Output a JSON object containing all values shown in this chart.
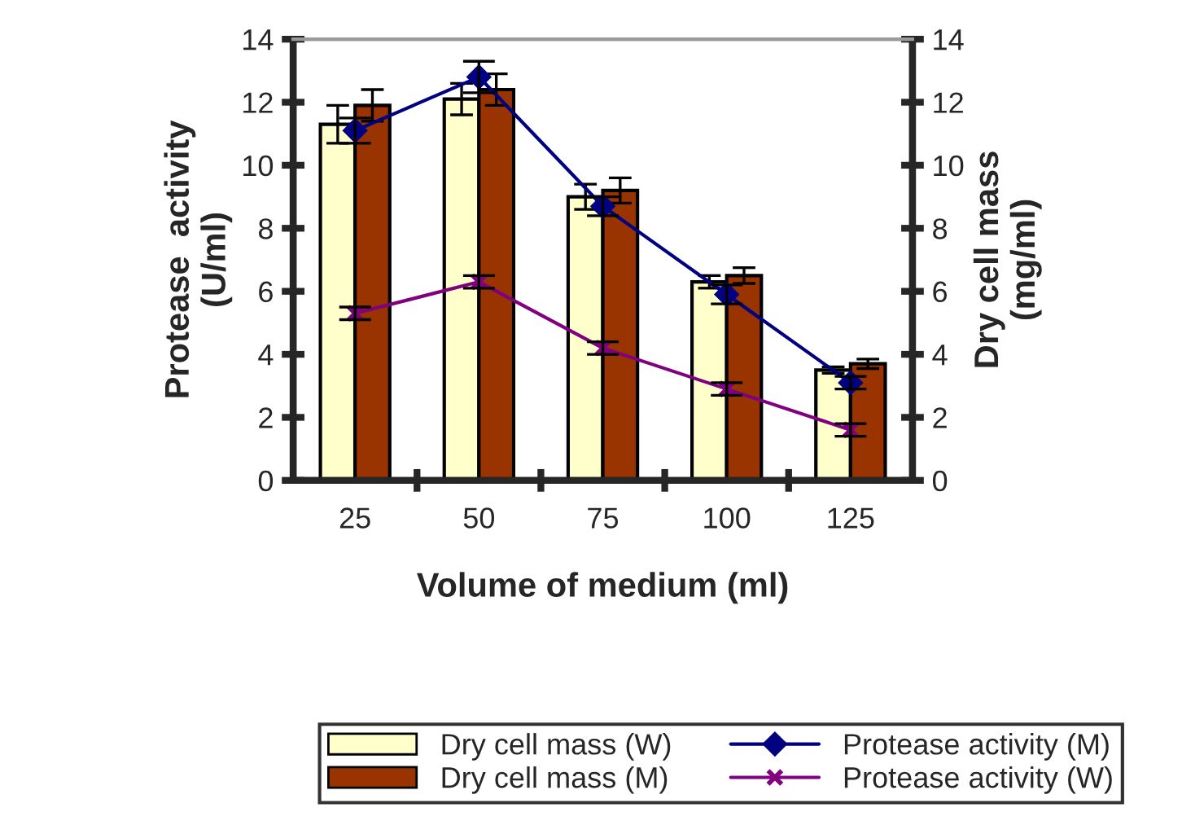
{
  "chart_data": {
    "type": "bar",
    "xlabel": "Volume of medium (ml)",
    "ylabel": "Protease  activity\n(U/ml)",
    "y2label": "Dry cell mass\n(mg/ml)",
    "categories": [
      "25",
      "50",
      "75",
      "100",
      "125"
    ],
    "series": [
      {
        "name": "Dry cell mass (W)",
        "axis": "y2",
        "color": "#ffffcc",
        "values": [
          11.3,
          12.1,
          9.0,
          6.3,
          3.5
        ],
        "errors": [
          0.6,
          0.5,
          0.4,
          0.2,
          0.1
        ]
      },
      {
        "name": "Dry cell mass (M)",
        "axis": "y2",
        "color": "#993300",
        "values": [
          11.9,
          12.4,
          9.2,
          6.5,
          3.7
        ],
        "errors": [
          0.5,
          0.5,
          0.4,
          0.25,
          0.15
        ]
      },
      {
        "name": "Protease activity (M)",
        "type": "line",
        "axis": "y",
        "color": "#000080",
        "marker": "diamond",
        "values": [
          11.1,
          12.8,
          8.7,
          5.9,
          3.1
        ],
        "errors": [
          0.4,
          0.5,
          0.3,
          0.3,
          0.2
        ]
      },
      {
        "name": "Protease activity (W)",
        "type": "line",
        "axis": "y",
        "color": "#800080",
        "marker": "cross",
        "values": [
          5.3,
          6.3,
          4.2,
          2.9,
          1.6
        ],
        "errors": [
          0.2,
          0.2,
          0.2,
          0.2,
          0.2
        ]
      }
    ],
    "ylim": [
      0,
      14
    ],
    "yticks": [
      0,
      2,
      4,
      6,
      8,
      10,
      12,
      14
    ],
    "y2lim": [
      0,
      14
    ],
    "y2ticks": [
      0,
      2,
      4,
      6,
      8,
      10,
      12,
      14
    ],
    "grid": false,
    "legend": "bottom",
    "line_style": "solid"
  }
}
